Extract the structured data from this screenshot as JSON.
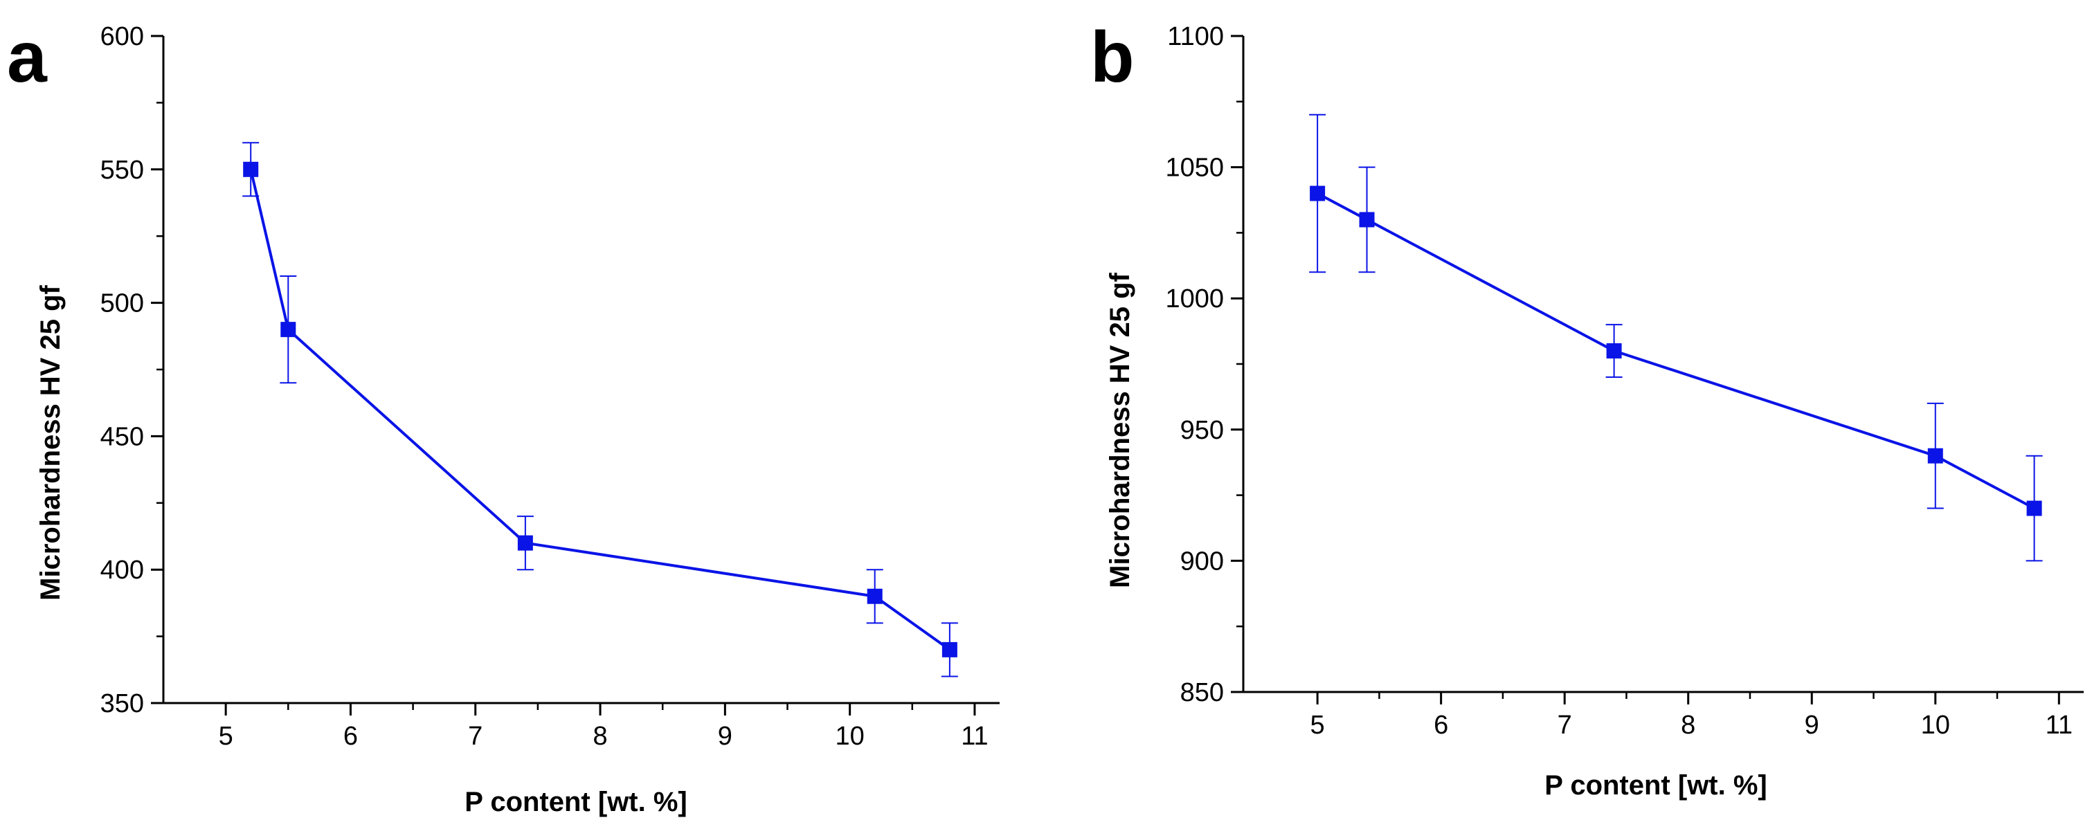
{
  "colors": {
    "series": "#0a14e6",
    "axis": "#000000"
  },
  "chart_data": [
    {
      "type": "line",
      "panel_label": "a",
      "xlabel": "P content [wt. %]",
      "ylabel": "Microhardness HV 25 gf",
      "xlim": [
        4.5,
        11.2
      ],
      "ylim": [
        350,
        600
      ],
      "xticks": [
        5,
        6,
        7,
        8,
        9,
        10,
        11
      ],
      "yticks": [
        350,
        400,
        450,
        500,
        550,
        600
      ],
      "xtick_labels": [
        "5",
        "6",
        "7",
        "8",
        "9",
        "10",
        "11"
      ],
      "ytick_labels": [
        "350",
        "400",
        "450",
        "500",
        "550",
        "600"
      ],
      "grid": false,
      "series": [
        {
          "marker": "square",
          "x": [
            5.2,
            5.5,
            7.4,
            10.2,
            10.8
          ],
          "y": [
            550,
            490,
            410,
            390,
            370
          ],
          "error": [
            10,
            20,
            10,
            10,
            10
          ]
        }
      ]
    },
    {
      "type": "line",
      "panel_label": "b",
      "xlabel": "P content [wt. %]",
      "ylabel": "Microhardness HV 25 gf",
      "xlim": [
        4.4,
        11.2
      ],
      "ylim": [
        850,
        1100
      ],
      "xticks": [
        5,
        6,
        7,
        8,
        9,
        10,
        11
      ],
      "yticks": [
        850,
        900,
        950,
        1000,
        1050,
        1100
      ],
      "xtick_labels": [
        "5",
        "6",
        "7",
        "8",
        "9",
        "10",
        "11"
      ],
      "ytick_labels": [
        "850",
        "900",
        "950",
        "1000",
        "1050",
        "1100"
      ],
      "grid": false,
      "series": [
        {
          "marker": "square",
          "x": [
            5.0,
            5.4,
            7.4,
            10.0,
            10.8
          ],
          "y": [
            1040,
            1030,
            980,
            940,
            920
          ],
          "error": [
            30,
            20,
            10,
            20,
            20
          ]
        }
      ]
    }
  ]
}
